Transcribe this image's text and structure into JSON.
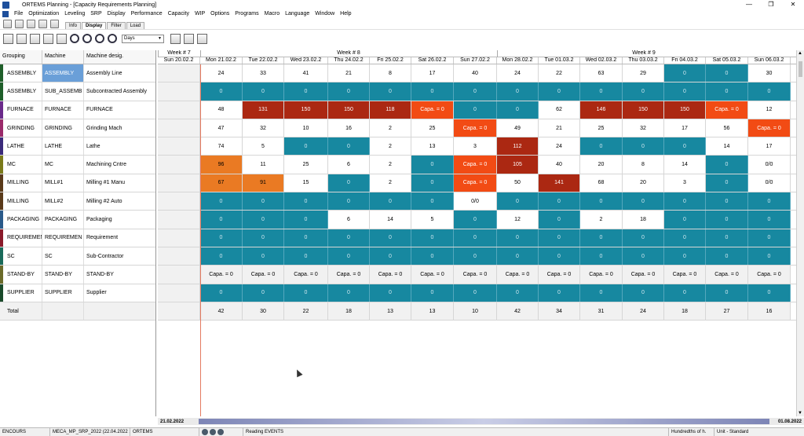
{
  "window": {
    "title": "ORTEMS  Planning - [Capacity Requirements Planning]"
  },
  "menu": [
    "File",
    "Optimization",
    "Leveling",
    "SRP",
    "Display",
    "Performance",
    "Capacity",
    "WIP",
    "Options",
    "Programs",
    "Macro",
    "Language",
    "Window",
    "Help"
  ],
  "tabs": [
    {
      "label": "Info"
    },
    {
      "label": "Display"
    },
    {
      "label": "Filter"
    },
    {
      "label": "Load"
    }
  ],
  "units_select": {
    "value": "Days"
  },
  "columns": {
    "grouping": "Grouping",
    "machine": "Machine",
    "designation": "Machine desig."
  },
  "weeks": [
    "Week # 7",
    "Week # 8",
    "Week # 9"
  ],
  "days": [
    "Sun 20.02.2",
    "Mon 21.02.2",
    "Tue 22.02.2",
    "Wed 23.02.2",
    "Thu 24.02.2",
    "Fri 25.02.2",
    "Sat 26.02.2",
    "Sun 27.02.2",
    "Mon 28.02.2",
    "Tue 01.03.2",
    "Wed 02.03.2",
    "Thu 03.03.2",
    "Fri 04.03.2",
    "Sat 05.03.2",
    "Sun 06.03.2"
  ],
  "colors": {
    "teal": "#1788a0",
    "dark_red": "#ab2812",
    "red": "#f24b14",
    "orange": "#ea7a23"
  },
  "rows": [
    {
      "grouping": "ASSEMBLY",
      "machine": "ASSEMBLY",
      "designation": "Assembly Line",
      "bar": "#1f5f2a",
      "cells": [
        [
          "",
          ""
        ],
        [
          "24",
          "w"
        ],
        [
          "33",
          "w"
        ],
        [
          "41",
          "w"
        ],
        [
          "21",
          "w"
        ],
        [
          "8",
          "w"
        ],
        [
          "17",
          "w"
        ],
        [
          "40",
          "w"
        ],
        [
          "24",
          "w"
        ],
        [
          "22",
          "w"
        ],
        [
          "63",
          "w"
        ],
        [
          "29",
          "w"
        ],
        [
          "0",
          "t"
        ],
        [
          "0",
          "t"
        ],
        [
          "30",
          "w"
        ]
      ]
    },
    {
      "grouping": "ASSEMBLY",
      "machine": "SUB_ASSEMB",
      "designation": "Subcontracted Assembly",
      "bar": "#1f5f2a",
      "cells": [
        [
          "",
          ""
        ],
        [
          "0",
          "t"
        ],
        [
          "0",
          "t"
        ],
        [
          "0",
          "t"
        ],
        [
          "0",
          "t"
        ],
        [
          "0",
          "t"
        ],
        [
          "0",
          "t"
        ],
        [
          "0",
          "t"
        ],
        [
          "0",
          "t"
        ],
        [
          "0",
          "t"
        ],
        [
          "0",
          "t"
        ],
        [
          "0",
          "t"
        ],
        [
          "0",
          "t"
        ],
        [
          "0",
          "t"
        ],
        [
          "0",
          "t"
        ]
      ]
    },
    {
      "grouping": "FURNACE",
      "machine": "FURNACE",
      "designation": "FURNACE",
      "bar": "#6a2a8a",
      "cells": [
        [
          "",
          ""
        ],
        [
          "48",
          "w"
        ],
        [
          "131",
          "d"
        ],
        [
          "150",
          "d"
        ],
        [
          "150",
          "d"
        ],
        [
          "118",
          "d"
        ],
        [
          "Capa. = 0",
          "r"
        ],
        [
          "0",
          "t"
        ],
        [
          "0",
          "t"
        ],
        [
          "62",
          "w"
        ],
        [
          "146",
          "d"
        ],
        [
          "150",
          "d"
        ],
        [
          "150",
          "d"
        ],
        [
          "Capa. = 0",
          "r"
        ],
        [
          "12",
          "w"
        ]
      ]
    },
    {
      "grouping": "GRINDING",
      "machine": "GRINDING",
      "designation": "Grinding Mach",
      "bar": "#9a2a6a",
      "cells": [
        [
          "",
          ""
        ],
        [
          "47",
          "w"
        ],
        [
          "32",
          "w"
        ],
        [
          "10",
          "w"
        ],
        [
          "16",
          "w"
        ],
        [
          "2",
          "w"
        ],
        [
          "25",
          "w"
        ],
        [
          "Capa. = 0",
          "r"
        ],
        [
          "49",
          "w"
        ],
        [
          "21",
          "w"
        ],
        [
          "25",
          "w"
        ],
        [
          "32",
          "w"
        ],
        [
          "17",
          "w"
        ],
        [
          "56",
          "w"
        ],
        [
          "Capa. = 0",
          "r"
        ]
      ]
    },
    {
      "grouping": "LATHE",
      "machine": "LATHE",
      "designation": "Lathe",
      "bar": "#3a2a7a",
      "cells": [
        [
          "",
          ""
        ],
        [
          "74",
          "w"
        ],
        [
          "5",
          "w"
        ],
        [
          "0",
          "t"
        ],
        [
          "0",
          "t"
        ],
        [
          "2",
          "w"
        ],
        [
          "13",
          "w"
        ],
        [
          "3",
          "w"
        ],
        [
          "112",
          "d"
        ],
        [
          "24",
          "w"
        ],
        [
          "0",
          "t"
        ],
        [
          "0",
          "t"
        ],
        [
          "0",
          "t"
        ],
        [
          "14",
          "w"
        ],
        [
          "17",
          "w"
        ]
      ]
    },
    {
      "grouping": "MC",
      "machine": "MC",
      "designation": "Machining Cntre",
      "bar": "#7a7a1a",
      "cells": [
        [
          "",
          ""
        ],
        [
          "96",
          "o"
        ],
        [
          "11",
          "w"
        ],
        [
          "25",
          "w"
        ],
        [
          "6",
          "w"
        ],
        [
          "2",
          "w"
        ],
        [
          "0",
          "t"
        ],
        [
          "Capa. = 0",
          "r"
        ],
        [
          "105",
          "d"
        ],
        [
          "40",
          "w"
        ],
        [
          "20",
          "w"
        ],
        [
          "8",
          "w"
        ],
        [
          "14",
          "w"
        ],
        [
          "0",
          "t"
        ],
        [
          "0/0",
          "w"
        ]
      ]
    },
    {
      "grouping": "MILLING",
      "machine": "MILL#1",
      "designation": "Milling #1 Manu",
      "bar": "#5a3a1a",
      "cells": [
        [
          "",
          ""
        ],
        [
          "67",
          "o"
        ],
        [
          "91",
          "o"
        ],
        [
          "15",
          "w"
        ],
        [
          "0",
          "t"
        ],
        [
          "2",
          "w"
        ],
        [
          "0",
          "t"
        ],
        [
          "Capa. = 0",
          "r"
        ],
        [
          "50",
          "w"
        ],
        [
          "141",
          "d"
        ],
        [
          "68",
          "w"
        ],
        [
          "20",
          "w"
        ],
        [
          "3",
          "w"
        ],
        [
          "0",
          "t"
        ],
        [
          "0/0",
          "w"
        ]
      ]
    },
    {
      "grouping": "MILLING",
      "machine": "MILL#2",
      "designation": "Milling #2 Auto",
      "bar": "#5a3a1a",
      "cells": [
        [
          "",
          ""
        ],
        [
          "0",
          "t"
        ],
        [
          "0",
          "t"
        ],
        [
          "0",
          "t"
        ],
        [
          "0",
          "t"
        ],
        [
          "0",
          "t"
        ],
        [
          "0",
          "t"
        ],
        [
          "0/0",
          "w"
        ],
        [
          "0",
          "t"
        ],
        [
          "0",
          "t"
        ],
        [
          "0",
          "t"
        ],
        [
          "0",
          "t"
        ],
        [
          "0",
          "t"
        ],
        [
          "0",
          "t"
        ],
        [
          "0",
          "t"
        ]
      ]
    },
    {
      "grouping": "PACKAGING",
      "machine": "PACKAGING",
      "designation": "Packaging",
      "bar": "#2a5a8a",
      "cells": [
        [
          "",
          ""
        ],
        [
          "0",
          "t"
        ],
        [
          "0",
          "t"
        ],
        [
          "0",
          "t"
        ],
        [
          "6",
          "w"
        ],
        [
          "14",
          "w"
        ],
        [
          "5",
          "w"
        ],
        [
          "0",
          "t"
        ],
        [
          "12",
          "w"
        ],
        [
          "0",
          "t"
        ],
        [
          "2",
          "w"
        ],
        [
          "18",
          "w"
        ],
        [
          "0",
          "t"
        ],
        [
          "0",
          "t"
        ],
        [
          "0",
          "t"
        ]
      ]
    },
    {
      "grouping": "REQUIREMEN",
      "machine": "REQUIREMEN",
      "designation": "Requirement",
      "bar": "#8a1a2a",
      "cells": [
        [
          "",
          ""
        ],
        [
          "0",
          "t"
        ],
        [
          "0",
          "t"
        ],
        [
          "0",
          "t"
        ],
        [
          "0",
          "t"
        ],
        [
          "0",
          "t"
        ],
        [
          "0",
          "t"
        ],
        [
          "0",
          "t"
        ],
        [
          "0",
          "t"
        ],
        [
          "0",
          "t"
        ],
        [
          "0",
          "t"
        ],
        [
          "0",
          "t"
        ],
        [
          "0",
          "t"
        ],
        [
          "0",
          "t"
        ],
        [
          "0",
          "t"
        ]
      ]
    },
    {
      "grouping": "SC",
      "machine": "SC",
      "designation": "Sub-Contractor",
      "bar": "#1a6a5a",
      "cells": [
        [
          "",
          ""
        ],
        [
          "0",
          "t"
        ],
        [
          "0",
          "t"
        ],
        [
          "0",
          "t"
        ],
        [
          "0",
          "t"
        ],
        [
          "0",
          "t"
        ],
        [
          "0",
          "t"
        ],
        [
          "0",
          "t"
        ],
        [
          "0",
          "t"
        ],
        [
          "0",
          "t"
        ],
        [
          "0",
          "t"
        ],
        [
          "0",
          "t"
        ],
        [
          "0",
          "t"
        ],
        [
          "0",
          "t"
        ],
        [
          "0",
          "t"
        ]
      ]
    },
    {
      "grouping": "STAND-BY",
      "machine": "STAND-BY",
      "designation": "STAND-BY",
      "bar": "#6a6a2a",
      "cells": [
        [
          "",
          "g"
        ],
        [
          "Capa. = 0",
          "g"
        ],
        [
          "Capa. = 0",
          "g"
        ],
        [
          "Capa. = 0",
          "g"
        ],
        [
          "Capa. = 0",
          "g"
        ],
        [
          "Capa. = 0",
          "g"
        ],
        [
          "Capa. = 0",
          "g"
        ],
        [
          "Capa. = 0",
          "g"
        ],
        [
          "Capa. = 0",
          "g"
        ],
        [
          "Capa. = 0",
          "g"
        ],
        [
          "Capa. = 0",
          "g"
        ],
        [
          "Capa. = 0",
          "g"
        ],
        [
          "Capa. = 0",
          "g"
        ],
        [
          "Capa. = 0",
          "g"
        ],
        [
          "Capa. = 0",
          "g"
        ]
      ]
    },
    {
      "grouping": "SUPPLIER",
      "machine": "SUPPLIER",
      "designation": "Supplier",
      "bar": "#1a4a2a",
      "cells": [
        [
          "",
          ""
        ],
        [
          "0",
          "t"
        ],
        [
          "0",
          "t"
        ],
        [
          "0",
          "t"
        ],
        [
          "0",
          "t"
        ],
        [
          "0",
          "t"
        ],
        [
          "0",
          "t"
        ],
        [
          "0",
          "t"
        ],
        [
          "0",
          "t"
        ],
        [
          "0",
          "t"
        ],
        [
          "0",
          "t"
        ],
        [
          "0",
          "t"
        ],
        [
          "0",
          "t"
        ],
        [
          "0",
          "t"
        ],
        [
          "0",
          "t"
        ]
      ]
    },
    {
      "grouping": "Total",
      "machine": "",
      "designation": "",
      "bar": "#f1f1f1",
      "cells": [
        [
          "",
          "g"
        ],
        [
          "42",
          "g"
        ],
        [
          "30",
          "g"
        ],
        [
          "22",
          "g"
        ],
        [
          "18",
          "g"
        ],
        [
          "13",
          "g"
        ],
        [
          "13",
          "g"
        ],
        [
          "10",
          "g"
        ],
        [
          "42",
          "g"
        ],
        [
          "34",
          "g"
        ],
        [
          "31",
          "g"
        ],
        [
          "24",
          "g"
        ],
        [
          "18",
          "g"
        ],
        [
          "27",
          "g"
        ],
        [
          "16",
          "g"
        ]
      ]
    }
  ],
  "timeline": {
    "start": "21.02.2022",
    "end": "01.08.2022"
  },
  "status": {
    "mode": "ENCOURS",
    "file": "MECA_MP_SRP_2022 (22.04.2022 10:",
    "app": "ORTEMS",
    "message": "Reading EVENTS",
    "units": "Hundredths of h.",
    "unit_mode": "Unit - Standard"
  }
}
